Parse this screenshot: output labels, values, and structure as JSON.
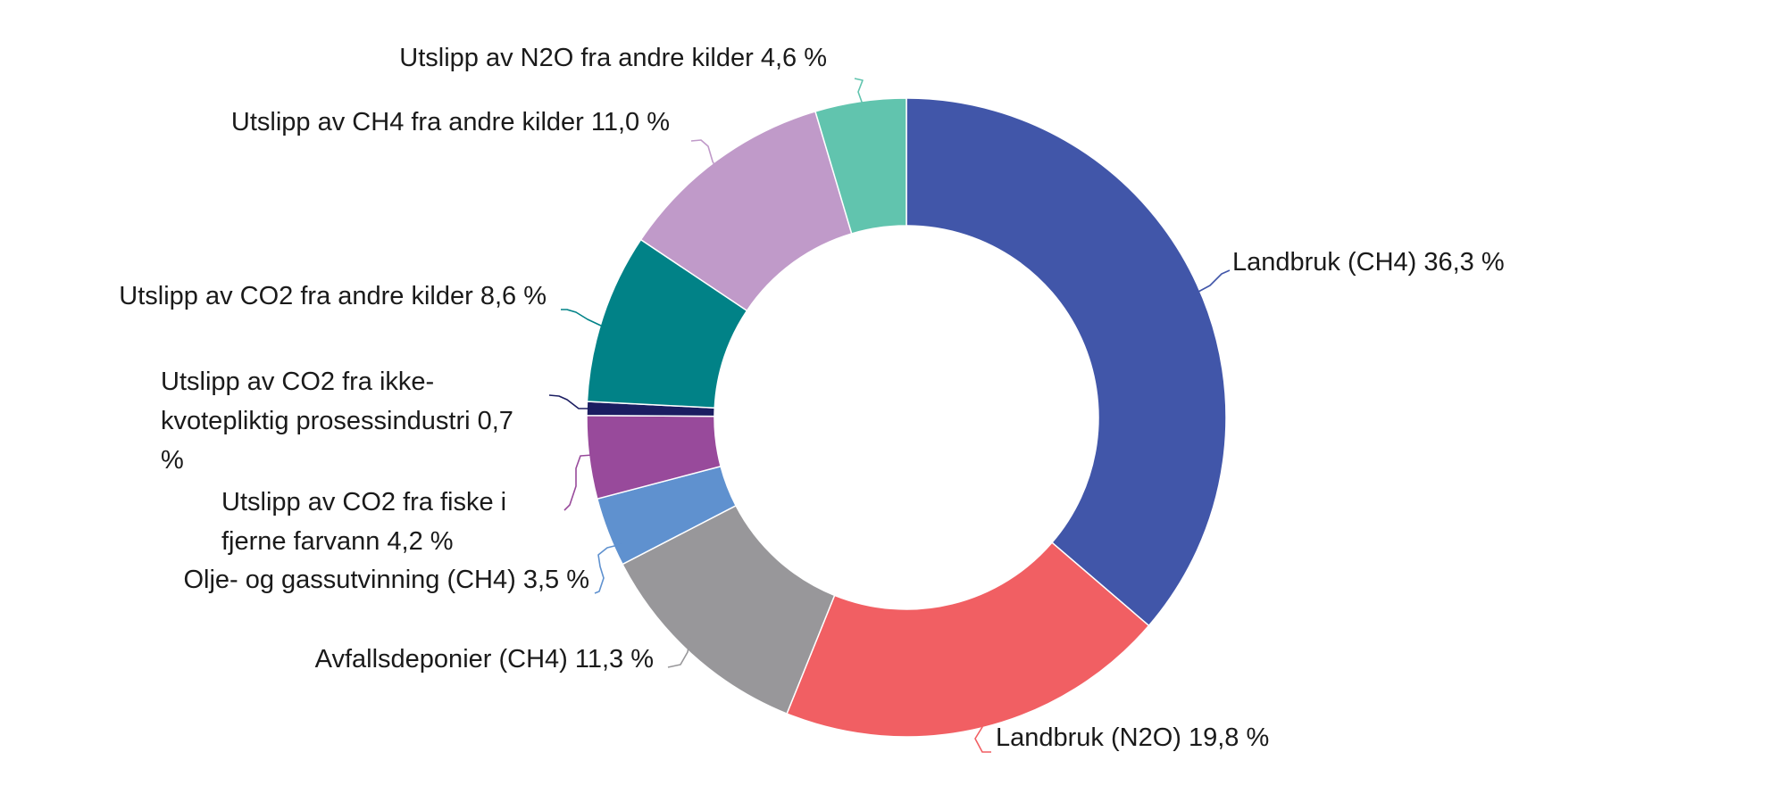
{
  "chart_data": {
    "type": "pie",
    "donut": true,
    "slices": [
      {
        "label": "Landbruk (CH4) 36,3 %",
        "value": 36.3,
        "color": "#4156a9"
      },
      {
        "label": "Landbruk (N2O) 19,8 %",
        "value": 19.8,
        "color": "#f15f63"
      },
      {
        "label": "Avfallsdeponier (CH4) 11,3 %",
        "value": 11.3,
        "color": "#98979a"
      },
      {
        "label": "Olje- og gassutvinning (CH4) 3,5 %",
        "value": 3.5,
        "color": "#5f91cf"
      },
      {
        "label": "Utslipp av CO2 fra fiske i fjerne farvann 4,2 %",
        "value": 4.2,
        "color": "#984a9b"
      },
      {
        "label": "Utslipp av CO2 fra ikke-kvotepliktig prosessindustri 0,7 %",
        "value": 0.7,
        "color": "#1b1d61"
      },
      {
        "label": "Utslipp av CO2 fra andre kilder 8,6 %",
        "value": 8.6,
        "color": "#018287"
      },
      {
        "label": "Utslipp av CH4 fra andre kilder 11,0 %",
        "value": 11.0,
        "color": "#c09ac9"
      },
      {
        "label": "Utslipp av N2O fra andre kilder 4,6 %",
        "value": 4.6,
        "color": "#61c4ae"
      }
    ],
    "legend": "none"
  }
}
